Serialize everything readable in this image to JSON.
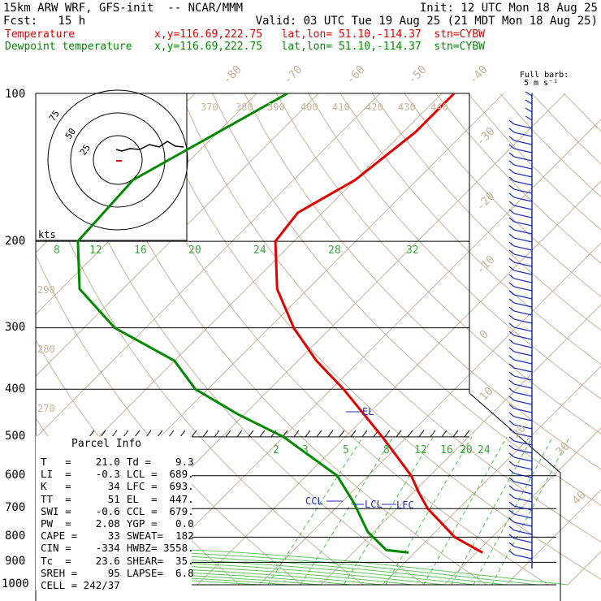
{
  "header": {
    "line1_left": "15km ARW WRF, GFS-init  -- NCAR/MMM",
    "line1_right": "Init: 12 UTC Mon 18 Aug 25",
    "line2_left": "Fcst:   15 h",
    "line2_right": "Valid: 03 UTC Tue 19 Aug 25 (21 MDT Mon 18 Aug 25)",
    "line3_label": "Temperature",
    "line3_info": "x,y=116.69,222.75   lat,lon= 51.10,-114.37  stn=CYBW",
    "line4_label": "Dewpoint temperature",
    "line4_info": "x,y=116.69,222.75   lat,lon= 51.10,-114.37  stn=CYBW"
  },
  "colors": {
    "temperature": "#e00000",
    "dewpoint": "#008a00",
    "isotherm": "#c8b49a",
    "mixing_ratio": "#4cc04c",
    "annotation": "#1c2fc0"
  },
  "chart_data": {
    "type": "line",
    "y_axis": "pressure (hPa), log scale, inverted",
    "pressure_labels": [
      "100",
      "200",
      "300",
      "400",
      "500",
      "600",
      "700",
      "800",
      "900",
      "1000"
    ],
    "pressure_levels": [
      100,
      200,
      300,
      400,
      500,
      600,
      700,
      800,
      900,
      1000
    ],
    "isotherm_top_labels": [
      "-80",
      "-70",
      "-60",
      "-50",
      "-40"
    ],
    "isotherm_right_labels": [
      "-30",
      "-20",
      "-10",
      "0",
      "10",
      "20",
      "30",
      "40"
    ],
    "isotherm_right_values": [
      -30,
      -20,
      -10,
      0,
      10,
      20,
      30,
      40
    ],
    "theta_top_labels": [
      "370",
      "380",
      "390",
      "400",
      "410",
      "420",
      "430",
      "440"
    ],
    "theta_left_labels": [
      "290",
      "280",
      "270"
    ],
    "mixing_ratio_upper_labels": [
      "8",
      "12",
      "16",
      "20",
      "24",
      "28",
      "32"
    ],
    "mixing_ratio_lower_labels": [
      "2",
      "3",
      "5",
      "8",
      "12",
      "16",
      "20",
      "24"
    ],
    "temperature_profile": [
      {
        "p": 100,
        "t": -58
      },
      {
        "p": 120,
        "t": -58
      },
      {
        "p": 150,
        "t": -60
      },
      {
        "p": 175,
        "t": -64
      },
      {
        "p": 200,
        "t": -63
      },
      {
        "p": 250,
        "t": -55
      },
      {
        "p": 300,
        "t": -46
      },
      {
        "p": 350,
        "t": -37
      },
      {
        "p": 400,
        "t": -28
      },
      {
        "p": 500,
        "t": -14
      },
      {
        "p": 600,
        "t": -3
      },
      {
        "p": 650,
        "t": 1
      },
      {
        "p": 700,
        "t": 5
      },
      {
        "p": 800,
        "t": 14
      },
      {
        "p": 860,
        "t": 21
      }
    ],
    "dewpoint_profile": [
      {
        "p": 100,
        "t": -85
      },
      {
        "p": 150,
        "t": -96
      },
      {
        "p": 200,
        "t": -95
      },
      {
        "p": 250,
        "t": -87
      },
      {
        "p": 300,
        "t": -75
      },
      {
        "p": 350,
        "t": -60
      },
      {
        "p": 400,
        "t": -52
      },
      {
        "p": 450,
        "t": -41
      },
      {
        "p": 500,
        "t": -30
      },
      {
        "p": 600,
        "t": -15
      },
      {
        "p": 680,
        "t": -8
      },
      {
        "p": 780,
        "t": -1
      },
      {
        "p": 850,
        "t": 5
      },
      {
        "p": 860,
        "t": 9
      }
    ],
    "annotations": {
      "el": "EL",
      "lcl": "LCL",
      "lfc": "LFC",
      "ccl": "CCL",
      "el_level": 447,
      "lcl_level": 689,
      "lfc_level": 693,
      "ccl_level": 679
    },
    "hodograph": {
      "unit_label": "kts",
      "ring_labels": [
        "25",
        "50",
        "75"
      ]
    },
    "wind_legend": {
      "title": "Full barb:",
      "unit": "5 m s⁻¹"
    }
  },
  "parcel_info": {
    "title": "Parcel Info",
    "rows": [
      [
        "T   =    21.0",
        "Td =    9.3"
      ],
      [
        "LI  =    -0.3",
        "LCL =  689."
      ],
      [
        "K   =      34",
        "LFC =  693."
      ],
      [
        "TT  =      51",
        "EL  =  447."
      ],
      [
        "SWI =    -0.6",
        "CCL =  679."
      ],
      [
        "PW  =    2.08",
        "YGP =   0.0"
      ],
      [
        "CAPE =     33",
        "SWEAT=  182"
      ],
      [
        "CIN =    -334",
        "HWBZ= 3558."
      ],
      [
        "Tc  =    23.6",
        "SHEAR=  35."
      ],
      [
        "SREH =     95",
        "LAPSE=  6.8"
      ],
      [
        "CELL = 242/37",
        ""
      ]
    ]
  }
}
